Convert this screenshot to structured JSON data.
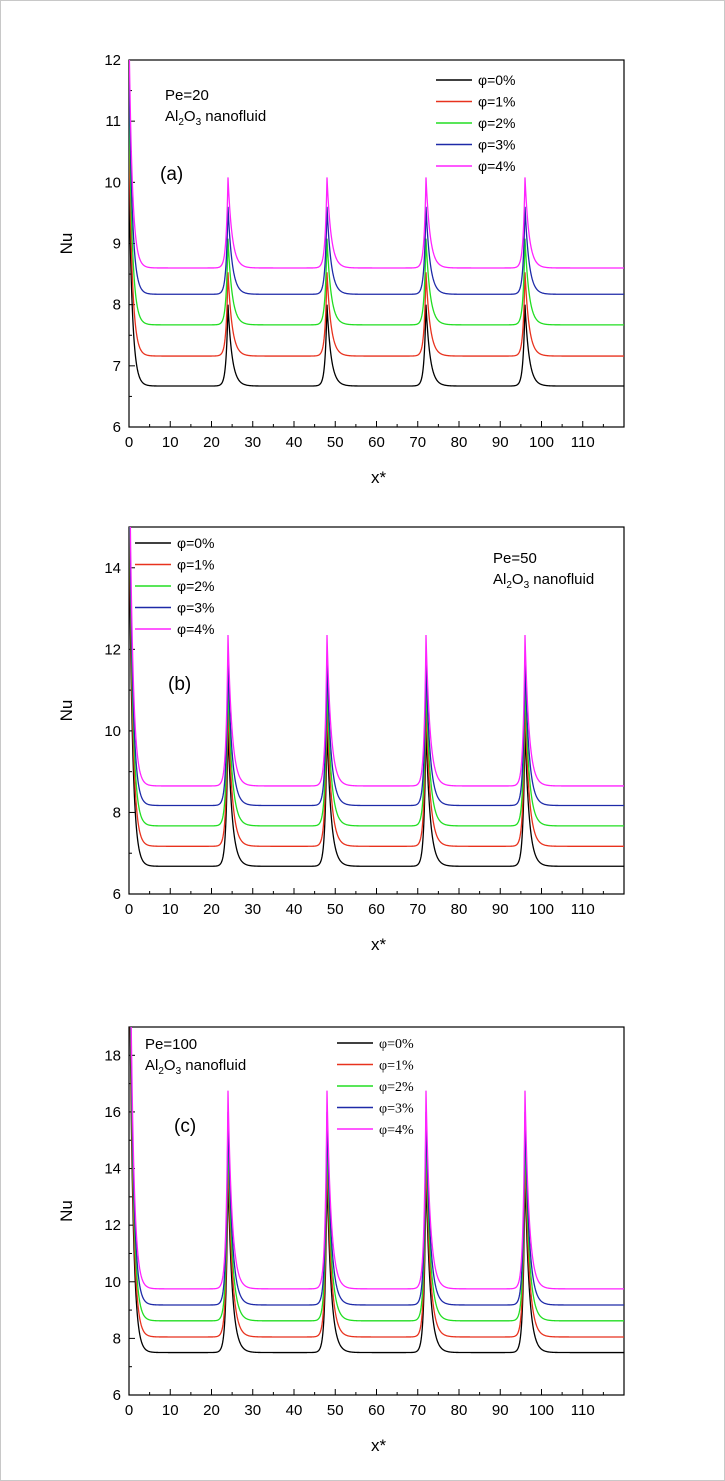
{
  "chart_data": [
    {
      "type": "line",
      "panel_label": "(a)",
      "title": "",
      "xlabel": "x*",
      "ylabel": "Nu",
      "xlim": [
        0,
        120
      ],
      "ylim": [
        6,
        12
      ],
      "xticks": [
        0,
        10,
        20,
        30,
        40,
        50,
        60,
        70,
        80,
        90,
        100,
        110
      ],
      "yticks": [
        6,
        7,
        8,
        9,
        10,
        11,
        12
      ],
      "annotations": [
        "Pe=20",
        "Al2O3 nanofluid"
      ],
      "legend_position": "top-right",
      "peak_x": [
        24,
        48,
        72,
        96
      ],
      "series": [
        {
          "name": "φ=0%",
          "color": "#000000",
          "baseline": 6.67,
          "peak": 8.0
        },
        {
          "name": "φ=1%",
          "color": "#e8321e",
          "baseline": 7.16,
          "peak": 8.53
        },
        {
          "name": "φ=2%",
          "color": "#22dd22",
          "baseline": 7.67,
          "peak": 9.08
        },
        {
          "name": "φ=3%",
          "color": "#1e2aa8",
          "baseline": 8.17,
          "peak": 9.6
        },
        {
          "name": "φ=4%",
          "color": "#ff22ff",
          "baseline": 8.6,
          "peak": 10.08
        }
      ]
    },
    {
      "type": "line",
      "panel_label": "(b)",
      "title": "",
      "xlabel": "x*",
      "ylabel": "Nu",
      "xlim": [
        0,
        120
      ],
      "ylim": [
        6,
        15
      ],
      "xticks": [
        0,
        10,
        20,
        30,
        40,
        50,
        60,
        70,
        80,
        90,
        100,
        110
      ],
      "yticks": [
        6,
        8,
        10,
        12,
        14
      ],
      "annotations": [
        "Pe=50",
        "Al2O3 nanofluid"
      ],
      "legend_position": "top-left",
      "peak_x": [
        24,
        48,
        72,
        96
      ],
      "series": [
        {
          "name": "φ=0%",
          "color": "#000000",
          "baseline": 6.68,
          "peak": 10.1
        },
        {
          "name": "φ=1%",
          "color": "#e8321e",
          "baseline": 7.17,
          "peak": 10.7
        },
        {
          "name": "φ=2%",
          "color": "#22dd22",
          "baseline": 7.67,
          "peak": 11.2
        },
        {
          "name": "φ=3%",
          "color": "#1e2aa8",
          "baseline": 8.17,
          "peak": 11.7
        },
        {
          "name": "φ=4%",
          "color": "#ff22ff",
          "baseline": 8.65,
          "peak": 12.35
        }
      ]
    },
    {
      "type": "line",
      "panel_label": "(c)",
      "title": "",
      "xlabel": "x*",
      "ylabel": "Nu",
      "xlim": [
        0,
        120
      ],
      "ylim": [
        6,
        19
      ],
      "xticks": [
        0,
        10,
        20,
        30,
        40,
        50,
        60,
        70,
        80,
        90,
        100,
        110
      ],
      "yticks": [
        6,
        8,
        10,
        12,
        14,
        16,
        18
      ],
      "annotations": [
        "Pe=100",
        "Al2O3 nanofluid"
      ],
      "legend_position": "top-center",
      "peak_x": [
        24,
        48,
        72,
        96
      ],
      "series": [
        {
          "name": "φ=0%",
          "color": "#000000",
          "baseline": 7.5,
          "peak": 13.9
        },
        {
          "name": "φ=1%",
          "color": "#e8321e",
          "baseline": 8.05,
          "peak": 14.6
        },
        {
          "name": "φ=2%",
          "color": "#22dd22",
          "baseline": 8.62,
          "peak": 15.3
        },
        {
          "name": "φ=3%",
          "color": "#1e2aa8",
          "baseline": 9.18,
          "peak": 16.0
        },
        {
          "name": "φ=4%",
          "color": "#ff22ff",
          "baseline": 9.75,
          "peak": 16.75
        }
      ]
    }
  ]
}
